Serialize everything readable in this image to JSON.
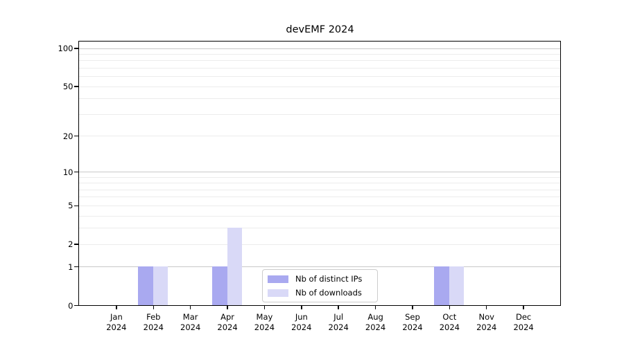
{
  "chart_data": {
    "type": "bar",
    "title": "devEMF 2024",
    "categories": [
      "Jan",
      "Feb",
      "Mar",
      "Apr",
      "May",
      "Jun",
      "Jul",
      "Aug",
      "Sep",
      "Oct",
      "Nov",
      "Dec"
    ],
    "category_year": "2024",
    "series": [
      {
        "name": "Nb of distinct IPs",
        "color": "#a9a9f0",
        "values": [
          0,
          1,
          0,
          1,
          0,
          0,
          0,
          0,
          0,
          1,
          0,
          0
        ]
      },
      {
        "name": "Nb of downloads",
        "color": "#d9d9f7",
        "values": [
          0,
          1,
          0,
          3,
          0,
          0,
          0,
          0,
          0,
          1,
          0,
          0
        ]
      }
    ],
    "yscale": "log1p",
    "ylim": [
      0,
      113
    ],
    "yticks": [
      0,
      1,
      2,
      5,
      10,
      20,
      50,
      100
    ],
    "gridlines": {
      "major": [
        1,
        10,
        100
      ],
      "minor": [
        2,
        3,
        4,
        5,
        6,
        7,
        8,
        9,
        20,
        30,
        40,
        50,
        60,
        70,
        80,
        90
      ]
    },
    "grid": true,
    "legend_position": "bottom-center",
    "colors": {
      "major_grid": "#c8c8c8",
      "minor_grid": "#ececec",
      "axis": "#000000",
      "legend_border": "#cccccc"
    }
  }
}
